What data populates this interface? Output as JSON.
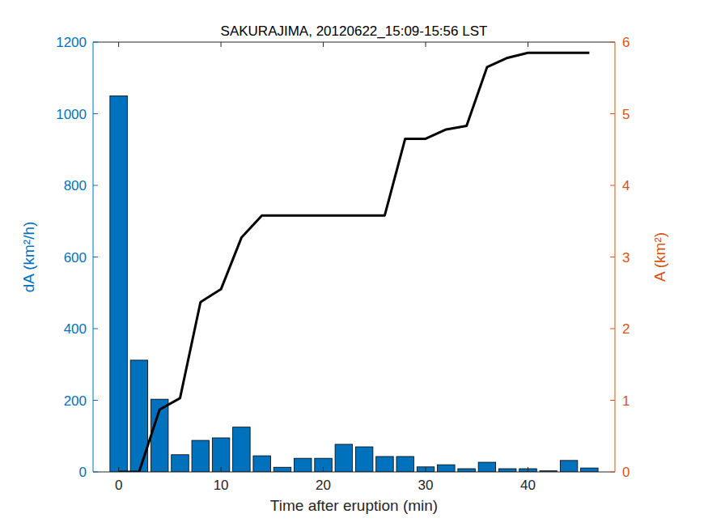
{
  "chart_data": {
    "type": "bar",
    "title": "SAKURAJIMA, 20120622_15:09-15:56 LST",
    "x_label": "Time after eruption (min)",
    "y_label": "dA (km²/h)",
    "y2_label": "A (km²)",
    "x": [
      0,
      2,
      4,
      6,
      8,
      10,
      12,
      14,
      16,
      18,
      20,
      22,
      24,
      26,
      28,
      30,
      32,
      34,
      36,
      38,
      40,
      42,
      44,
      46
    ],
    "series": [
      {
        "type": "bar",
        "color": "#0072bd",
        "values": [
          1050,
          312,
          203,
          48,
          88,
          95,
          125,
          45,
          13,
          38,
          38,
          77,
          70,
          43,
          43,
          14,
          20,
          9,
          27,
          9,
          9,
          3,
          32,
          11
        ]
      },
      {
        "type": "line",
        "axis": "y2",
        "color": "#000000",
        "values": [
          0,
          0,
          0.87,
          1.03,
          2.37,
          2.55,
          3.27,
          3.58,
          3.58,
          3.58,
          3.58,
          3.58,
          3.58,
          3.58,
          4.65,
          4.65,
          4.78,
          4.83,
          5.65,
          5.78,
          5.85,
          5.85,
          5.85,
          5.85
        ]
      }
    ],
    "xlim": [
      -2.5,
      48.5
    ],
    "xticks": [
      0,
      10,
      20,
      30,
      40
    ],
    "ylim": [
      0,
      1200
    ],
    "yticks": [
      0,
      200,
      400,
      600,
      800,
      1000,
      1200
    ],
    "y2lim": [
      0,
      6
    ],
    "y2ticks": [
      0,
      1,
      2,
      3,
      4,
      5,
      6
    ],
    "grid": false
  }
}
